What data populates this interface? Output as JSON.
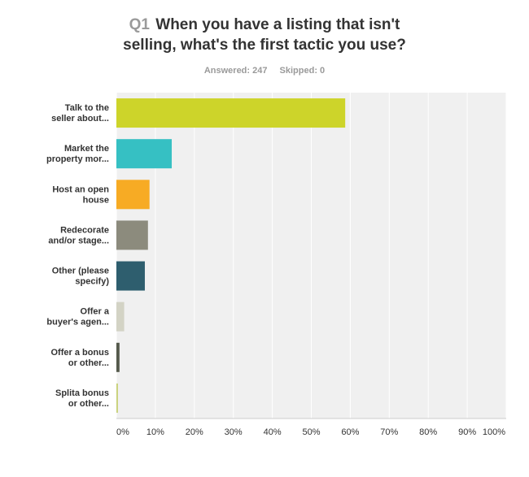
{
  "header": {
    "question_number": "Q1",
    "question_line1": "When you have a listing that isn't",
    "question_line2": "selling, what's the first tactic you use?",
    "answered": "Answered: 247",
    "skipped": "Skipped: 0"
  },
  "chart_data": {
    "type": "bar",
    "orientation": "horizontal",
    "categories": [
      [
        "Talk to the",
        "seller about..."
      ],
      [
        "Market the",
        "property mor..."
      ],
      [
        "Host an open",
        "house"
      ],
      [
        "Redecorate",
        "and/or stage..."
      ],
      [
        "Other (please",
        "specify)"
      ],
      [
        "Offer a",
        "buyer's agen..."
      ],
      [
        "Offer a bonus",
        "or other..."
      ],
      [
        "Splita bonus",
        "or other..."
      ]
    ],
    "values": [
      58.7,
      14.2,
      8.5,
      8.1,
      7.3,
      2.0,
      0.8,
      0.4
    ],
    "colors": [
      "#cdd42a",
      "#36c0c3",
      "#f7ab24",
      "#8c8b7d",
      "#2e5e6e",
      "#d3d3c5",
      "#555a4c",
      "#c8d17a"
    ],
    "xlim": [
      0,
      100
    ],
    "xticks": [
      "0%",
      "10%",
      "20%",
      "30%",
      "40%",
      "50%",
      "60%",
      "70%",
      "80%",
      "90%",
      "100%"
    ],
    "grid": true,
    "legend": "none"
  }
}
